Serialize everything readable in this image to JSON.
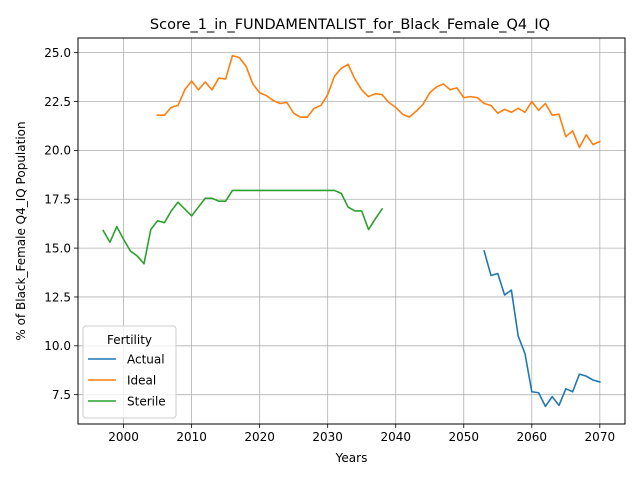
{
  "chart_data": {
    "type": "line",
    "title": "Score_1_in_FUNDAMENTALIST_for_Black_Female_Q4_IQ",
    "xlabel": "Years",
    "ylabel": "% of Black_Female Q4_IQ Population",
    "xlim": [
      1993.3,
      2073.7
    ],
    "ylim": [
      6.0,
      25.75
    ],
    "xticks": [
      2000,
      2010,
      2020,
      2030,
      2040,
      2050,
      2060,
      2070
    ],
    "yticks": [
      7.5,
      10.0,
      12.5,
      15.0,
      17.5,
      20.0,
      22.5,
      25.0
    ],
    "ytick_labels": [
      "7.5",
      "10.0",
      "12.5",
      "15.0",
      "17.5",
      "20.0",
      "22.5",
      "25.0"
    ],
    "grid": true,
    "legend": {
      "title": "Fertility",
      "placement": "lower-left"
    },
    "series": [
      {
        "name": "Actual",
        "color": "#1f77b4",
        "x": [
          2053,
          2054,
          2055,
          2056,
          2057,
          2058,
          2059,
          2060,
          2061,
          2062,
          2063,
          2064,
          2065,
          2066,
          2067,
          2068,
          2069,
          2070
        ],
        "y": [
          14.85,
          13.6,
          13.7,
          12.6,
          12.85,
          10.5,
          9.6,
          7.65,
          7.6,
          6.9,
          7.4,
          6.95,
          7.8,
          7.65,
          8.55,
          8.45,
          8.25,
          8.15
        ]
      },
      {
        "name": "Ideal",
        "color": "#ff7f0e",
        "x": [
          2005,
          2006,
          2007,
          2008,
          2009,
          2010,
          2011,
          2012,
          2013,
          2014,
          2015,
          2016,
          2017,
          2018,
          2019,
          2020,
          2021,
          2022,
          2023,
          2024,
          2025,
          2026,
          2027,
          2028,
          2029,
          2030,
          2031,
          2032,
          2033,
          2034,
          2035,
          2036,
          2037,
          2038,
          2039,
          2040,
          2041,
          2042,
          2043,
          2044,
          2045,
          2046,
          2047,
          2048,
          2049,
          2050,
          2051,
          2052,
          2053,
          2054,
          2055,
          2056,
          2057,
          2058,
          2059,
          2060,
          2061,
          2062,
          2063,
          2064,
          2065,
          2066,
          2067,
          2068,
          2069,
          2070
        ],
        "y": [
          21.8,
          21.8,
          22.2,
          22.3,
          23.1,
          23.55,
          23.1,
          23.5,
          23.1,
          23.7,
          23.65,
          24.85,
          24.75,
          24.3,
          23.4,
          22.95,
          22.8,
          22.55,
          22.4,
          22.45,
          21.9,
          21.7,
          21.7,
          22.15,
          22.3,
          22.85,
          23.8,
          24.2,
          24.4,
          23.65,
          23.1,
          22.75,
          22.9,
          22.85,
          22.45,
          22.2,
          21.85,
          21.7,
          22.0,
          22.35,
          22.95,
          23.25,
          23.4,
          23.1,
          23.2,
          22.7,
          22.75,
          22.7,
          22.4,
          22.3,
          21.9,
          22.1,
          21.95,
          22.15,
          21.95,
          22.5,
          22.05,
          22.4,
          21.8,
          21.85,
          20.7,
          21.0,
          20.15,
          20.8,
          20.3,
          20.45
        ]
      },
      {
        "name": "Sterile",
        "color": "#2ca02c",
        "x": [
          1997,
          1998,
          1999,
          2000,
          2001,
          2002,
          2003,
          2004,
          2005,
          2006,
          2007,
          2008,
          2009,
          2010,
          2011,
          2012,
          2013,
          2014,
          2015,
          2016,
          2017,
          2018,
          2019,
          2020,
          2021,
          2022,
          2023,
          2024,
          2025,
          2026,
          2027,
          2028,
          2029,
          2030,
          2031,
          2032,
          2033,
          2034,
          2035,
          2036,
          2037,
          2038
        ],
        "y": [
          15.9,
          15.3,
          16.1,
          15.45,
          14.85,
          14.6,
          14.2,
          15.95,
          16.4,
          16.3,
          16.9,
          17.35,
          17.0,
          16.65,
          17.1,
          17.55,
          17.55,
          17.4,
          17.4,
          17.95,
          17.95,
          17.95,
          17.95,
          17.95,
          17.95,
          17.95,
          17.95,
          17.95,
          17.95,
          17.95,
          17.95,
          17.95,
          17.95,
          17.95,
          17.95,
          17.8,
          17.1,
          16.9,
          16.9,
          15.95,
          16.5,
          17.0
        ]
      }
    ]
  }
}
